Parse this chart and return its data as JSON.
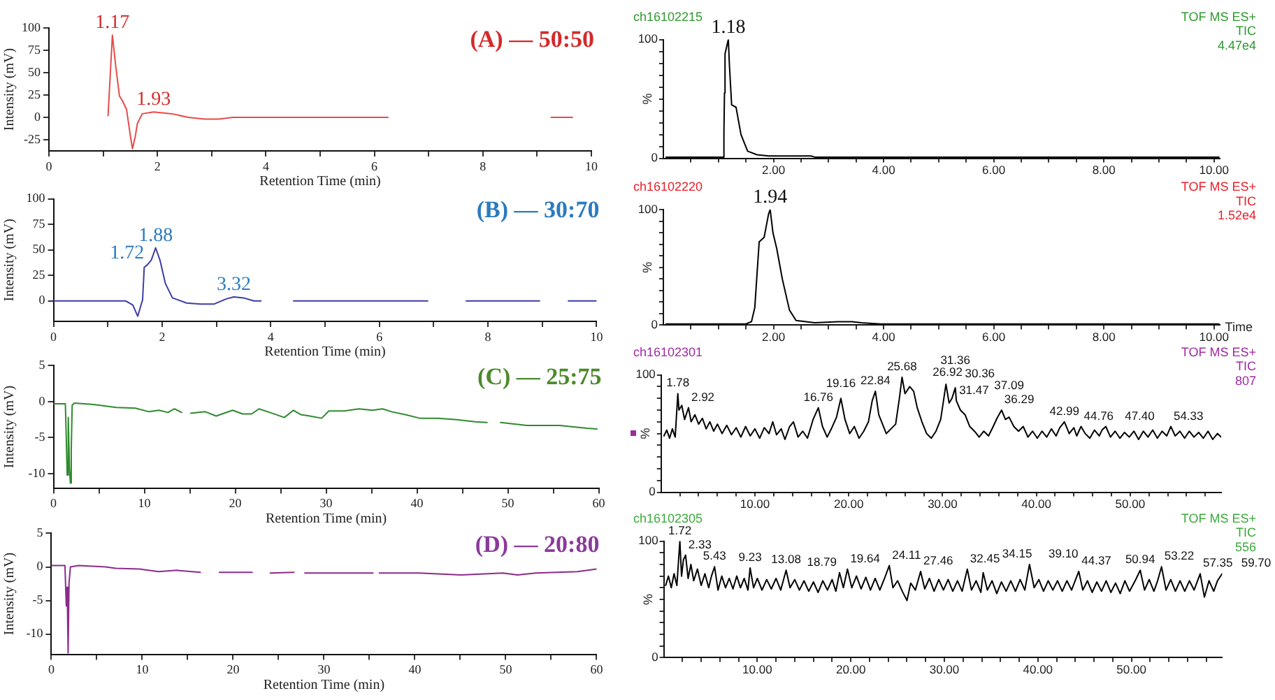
{
  "chart_data": [
    {
      "type": "line",
      "title": "(A) — 50:50",
      "xlabel": "Retention Time (min)",
      "ylabel": "Intensity (mV)",
      "x": [
        1.09,
        1.17,
        1.23,
        1.3,
        1.36,
        1.43,
        1.5,
        1.54,
        1.59,
        1.63,
        1.72,
        1.93,
        2.27,
        2.57,
        2.87,
        3.13,
        3.39,
        6.25,
        7.75,
        9.26,
        9.65
      ],
      "series": [
        {
          "color": "#e84a4a",
          "values": [
            2,
            92,
            58,
            24,
            18,
            9,
            -20,
            -35,
            -22,
            -7,
            4,
            6,
            4,
            0,
            -2,
            -2,
            0,
            0,
            null,
            0,
            0
          ]
        }
      ],
      "xlim": [
        0,
        10
      ],
      "ylim": [
        -37.5,
        100
      ],
      "xticks": [
        0,
        {
          "value": 1,
          "label": null
        },
        2,
        {
          "value": 3,
          "label": null
        },
        4,
        {
          "value": 5,
          "label": null
        },
        6,
        {
          "value": 7,
          "label": null
        },
        8,
        {
          "value": 9,
          "label": null
        },
        10
      ],
      "yticks": [
        -25,
        0,
        25,
        50,
        75,
        100
      ],
      "annotations": [
        {
          "text": "1.17",
          "x": 1.17,
          "y": 92
        },
        {
          "text": "1.93",
          "x": 1.93,
          "y": 6
        }
      ]
    },
    {
      "type": "line",
      "title": "ch16102215",
      "ylabel": "%",
      "x": [
        0.05,
        1.09,
        1.1,
        1.11,
        1.12,
        1.18,
        1.2,
        1.24,
        1.32,
        1.41,
        1.53,
        1.7,
        1.91,
        2.68,
        2.75,
        10.1
      ],
      "series": [
        {
          "color": "#000000",
          "values": [
            1,
            1,
            22,
            55,
            88,
            100,
            78,
            45,
            43,
            20,
            6,
            3,
            2,
            2,
            1,
            1
          ]
        }
      ],
      "xlim": [
        0,
        10.1
      ],
      "ylim": [
        0,
        100
      ],
      "xticks": [
        {
          "value": 0.5,
          "label": null
        },
        {
          "value": 1,
          "label": null
        },
        {
          "value": 1.5,
          "label": null
        },
        {
          "value": 2,
          "label": "2.00"
        },
        {
          "value": 2.5,
          "label": null
        },
        {
          "value": 3,
          "label": null
        },
        {
          "value": 3.5,
          "label": null
        },
        {
          "value": 4,
          "label": "4.00"
        },
        {
          "value": 4.5,
          "label": null
        },
        {
          "value": 5,
          "label": null
        },
        {
          "value": 5.5,
          "label": null
        },
        {
          "value": 6,
          "label": "6.00"
        },
        {
          "value": 6.5,
          "label": null
        },
        {
          "value": 7,
          "label": null
        },
        {
          "value": 7.5,
          "label": null
        },
        {
          "value": 8,
          "label": "8.00"
        },
        {
          "value": 8.5,
          "label": null
        },
        {
          "value": 9,
          "label": null
        },
        {
          "value": 9.5,
          "label": null
        },
        {
          "value": 10,
          "label": "10.00"
        }
      ],
      "yticks": [
        0,
        {
          "value": 10,
          "label": null
        },
        {
          "value": 20,
          "label": null
        },
        {
          "value": 30,
          "label": null
        },
        {
          "value": 40,
          "label": null
        },
        {
          "value": 50,
          "label": null
        },
        {
          "value": 60,
          "label": null
        },
        {
          "value": 70,
          "label": null
        },
        {
          "value": 80,
          "label": null
        },
        {
          "value": 90,
          "label": null
        },
        100
      ],
      "annotations": [
        "TOF MS ES+",
        "TIC",
        "4.47e4",
        {
          "text": "1.18",
          "x": 1.18,
          "y": 100
        }
      ]
    },
    {
      "type": "line",
      "title": "(B) — 30:70",
      "xlabel": "Retention Time (min)",
      "ylabel": "Intensity (mV)",
      "x": [
        0,
        1.33,
        1.46,
        1.55,
        1.6,
        1.64,
        1.67,
        1.72,
        1.8,
        1.88,
        1.96,
        2.06,
        2.19,
        2.45,
        2.7,
        2.96,
        3.18,
        3.32,
        3.5,
        3.69,
        3.82,
        4.1,
        4.42,
        6.89,
        7.25,
        7.6,
        8.95,
        9.2,
        9.48,
        10
      ],
      "series": [
        {
          "color": "#3c3ca8",
          "values": [
            0,
            0,
            -4,
            -15,
            -6,
            1,
            33,
            35,
            40,
            52,
            40,
            17,
            3,
            -2,
            -3,
            -3,
            2,
            4,
            3,
            0,
            0,
            null,
            0,
            0,
            null,
            0,
            0,
            null,
            0,
            0
          ]
        }
      ],
      "xlim": [
        0,
        10
      ],
      "ylim": [
        -20,
        100
      ],
      "xticks": [
        0,
        {
          "value": 1,
          "label": null
        },
        2,
        {
          "value": 3,
          "label": null
        },
        4,
        {
          "value": 5,
          "label": null
        },
        6,
        {
          "value": 7,
          "label": null
        },
        8,
        {
          "value": 9,
          "label": null
        },
        10
      ],
      "yticks": [
        0,
        25,
        50,
        75,
        100
      ],
      "annotations": [
        {
          "text": "1.72",
          "x": 1.72,
          "y": 35
        },
        {
          "text": "1.88",
          "x": 1.88,
          "y": 52
        },
        {
          "text": "3.32",
          "x": 3.32,
          "y": 4
        }
      ]
    },
    {
      "type": "line",
      "title": "ch16102220",
      "xlabel": "Time",
      "ylabel": "%",
      "x": [
        0.05,
        1.5,
        1.6,
        1.66,
        1.74,
        1.83,
        1.91,
        1.94,
        1.99,
        2.06,
        2.16,
        2.29,
        2.41,
        2.75,
        3.17,
        3.43,
        3.6,
        3.94,
        10.1
      ],
      "series": [
        {
          "color": "#000000",
          "values": [
            1,
            1,
            3,
            15,
            72,
            76,
            96,
            100,
            80,
            66,
            40,
            13,
            4,
            2,
            3,
            3,
            2,
            1,
            1
          ]
        }
      ],
      "xlim": [
        0,
        10.1
      ],
      "ylim": [
        0,
        100
      ],
      "xticks": [
        {
          "value": 0.5,
          "label": null
        },
        {
          "value": 1,
          "label": null
        },
        {
          "value": 1.5,
          "label": null
        },
        {
          "value": 2,
          "label": "2.00"
        },
        {
          "value": 2.5,
          "label": null
        },
        {
          "value": 3,
          "label": null
        },
        {
          "value": 3.5,
          "label": null
        },
        {
          "value": 4,
          "label": "4.00"
        },
        {
          "value": 4.5,
          "label": null
        },
        {
          "value": 5,
          "label": null
        },
        {
          "value": 5.5,
          "label": null
        },
        {
          "value": 6,
          "label": "6.00"
        },
        {
          "value": 6.5,
          "label": null
        },
        {
          "value": 7,
          "label": null
        },
        {
          "value": 7.5,
          "label": null
        },
        {
          "value": 8,
          "label": "8.00"
        },
        {
          "value": 8.5,
          "label": null
        },
        {
          "value": 9,
          "label": null
        },
        {
          "value": 9.5,
          "label": null
        },
        {
          "value": 10,
          "label": "10.00"
        }
      ],
      "yticks": [
        0,
        {
          "value": 10,
          "label": null
        },
        {
          "value": 20,
          "label": null
        },
        {
          "value": 30,
          "label": null
        },
        {
          "value": 40,
          "label": null
        },
        {
          "value": 50,
          "label": null
        },
        {
          "value": 60,
          "label": null
        },
        {
          "value": 70,
          "label": null
        },
        {
          "value": 80,
          "label": null
        },
        {
          "value": 90,
          "label": null
        },
        100
      ],
      "annotations": [
        "TOF MS ES+",
        "TIC",
        "1.52e4",
        {
          "text": "1.94",
          "x": 1.94,
          "y": 100
        }
      ]
    },
    {
      "type": "line",
      "title": "(C) — 25:75",
      "xlabel": "Retention Time (min)",
      "ylabel": "Intensity (mV)",
      "x": [
        0,
        1.3,
        1.4,
        1.5,
        1.62,
        1.75,
        1.85,
        1.95,
        2.05,
        2.3,
        4.4,
        6.9,
        9,
        10.5,
        11.6,
        12.6,
        13.3,
        14.1,
        14.6,
        15.1,
        16.7,
        17.9,
        19.7,
        20.8,
        21.8,
        22.6,
        23.8,
        25.4,
        26.4,
        27.2,
        28.2,
        29.5,
        30.3,
        32,
        33.6,
        35.1,
        36.2,
        37.2,
        38.7,
        40.3,
        42.3,
        44.4,
        46.4,
        47.7,
        48.4,
        49.2,
        52.1,
        55.7,
        58.7,
        59.8
      ],
      "series": [
        {
          "color": "#2f8a2f",
          "values": [
            -0.3,
            -0.3,
            -5,
            -10.2,
            -2.2,
            -9,
            -11.3,
            -6.7,
            -0.5,
            -0.2,
            -0.4,
            -0.8,
            -0.9,
            -1.4,
            -1.2,
            -1.5,
            -1,
            -1.5,
            null,
            -1.6,
            -1.4,
            -2,
            -1.2,
            -1.7,
            -1.7,
            -1,
            -1.5,
            -2.2,
            -1.2,
            -1.8,
            -2,
            -2.3,
            -1.3,
            -1.3,
            -1,
            -1.2,
            -1,
            -1.4,
            -1.8,
            -2.3,
            -2.3,
            -2.5,
            -2.8,
            -2.9,
            null,
            -2.9,
            -3.3,
            -3.3,
            -3.7,
            -3.8
          ]
        }
      ],
      "xlim": [
        0,
        60
      ],
      "ylim": [
        -12,
        5
      ],
      "xticks": [
        0,
        {
          "value": 5,
          "label": null
        },
        10,
        {
          "value": 15,
          "label": null
        },
        20,
        {
          "value": 25,
          "label": null
        },
        30,
        {
          "value": 35,
          "label": null
        },
        40,
        {
          "value": 45,
          "label": null
        },
        50,
        {
          "value": 55,
          "label": null
        },
        60
      ],
      "yticks": [
        -10,
        -5,
        0,
        5
      ]
    },
    {
      "type": "line",
      "title": "ch16102301",
      "ylabel": "%",
      "x": [
        0.3,
        0.6,
        0.9,
        1.2,
        1.5,
        1.78,
        1.9,
        2.2,
        2.5,
        2.92,
        3.2,
        3.6,
        4,
        4.4,
        4.8,
        5.2,
        5.6,
        6,
        6.5,
        7,
        7.5,
        8,
        8.5,
        9,
        9.5,
        10,
        10.5,
        11,
        11.5,
        11.9,
        12.3,
        12.8,
        13.2,
        13.7,
        14.1,
        14.6,
        15.1,
        15.6,
        16.2,
        16.76,
        17.2,
        17.7,
        18.2,
        18.7,
        19.16,
        19.6,
        20.1,
        20.6,
        21.1,
        21.6,
        22.1,
        22.5,
        22.84,
        23.2,
        23.6,
        24,
        24.5,
        25,
        25.4,
        25.68,
        26,
        26.5,
        26.92,
        27.3,
        27.8,
        28.3,
        28.8,
        29.3,
        29.8,
        30.1,
        30.36,
        30.7,
        31,
        31.36,
        31.47,
        31.9,
        32.4,
        32.9,
        33.4,
        33.9,
        34.4,
        34.9,
        35.4,
        35.8,
        36.29,
        36.7,
        37.09,
        37.6,
        38.1,
        38.6,
        39.1,
        39.6,
        40.1,
        40.6,
        41.1,
        41.6,
        42.1,
        42.5,
        42.99,
        43.5,
        44,
        44.3,
        44.76,
        45.2,
        45.7,
        46.2,
        46.7,
        47,
        47.4,
        47.9,
        48.4,
        48.9,
        49.4,
        49.9,
        50.4,
        50.9,
        51.4,
        51.9,
        52.4,
        52.9,
        53.4,
        53.9,
        54.33,
        54.8,
        55.3,
        55.8,
        56.3,
        56.8,
        57.3,
        57.8,
        58.3,
        58.8,
        59.3,
        59.7
      ],
      "series": [
        {
          "color": "#000000",
          "values": [
            48,
            53,
            46,
            54,
            47,
            84,
            70,
            74,
            62,
            72,
            60,
            66,
            58,
            63,
            54,
            60,
            52,
            58,
            50,
            57,
            49,
            55,
            47,
            56,
            48,
            54,
            46,
            55,
            50,
            60,
            49,
            54,
            45,
            56,
            60,
            47,
            52,
            46,
            62,
            72,
            56,
            47,
            55,
            64,
            80,
            62,
            50,
            56,
            46,
            52,
            60,
            78,
            86,
            66,
            58,
            50,
            54,
            58,
            80,
            98,
            84,
            90,
            86,
            72,
            60,
            50,
            46,
            52,
            62,
            78,
            92,
            76,
            80,
            89,
            78,
            70,
            66,
            56,
            52,
            47,
            52,
            48,
            56,
            63,
            70,
            62,
            64,
            56,
            52,
            56,
            47,
            52,
            46,
            52,
            47,
            54,
            48,
            55,
            60,
            50,
            55,
            48,
            56,
            50,
            46,
            53,
            48,
            53,
            56,
            47,
            52,
            46,
            51,
            47,
            52,
            45,
            52,
            47,
            53,
            46,
            52,
            48,
            56,
            48,
            52,
            46,
            52,
            47,
            51,
            46,
            52,
            45,
            50,
            47
          ]
        }
      ],
      "xlim": [
        0,
        59.7
      ],
      "ylim": [
        0,
        100
      ],
      "xticks": [
        {
          "value": 2,
          "label": null
        },
        {
          "value": 4,
          "label": null
        },
        {
          "value": 6,
          "label": null
        },
        {
          "value": 8,
          "label": null
        },
        {
          "value": 10,
          "label": "10.00"
        },
        {
          "value": 12,
          "label": null
        },
        {
          "value": 14,
          "label": null
        },
        {
          "value": 16,
          "label": null
        },
        {
          "value": 18,
          "label": null
        },
        {
          "value": 20,
          "label": "20.00"
        },
        {
          "value": 22,
          "label": null
        },
        {
          "value": 24,
          "label": null
        },
        {
          "value": 26,
          "label": null
        },
        {
          "value": 28,
          "label": null
        },
        {
          "value": 30,
          "label": "30.00"
        },
        {
          "value": 32,
          "label": null
        },
        {
          "value": 34,
          "label": null
        },
        {
          "value": 36,
          "label": null
        },
        {
          "value": 38,
          "label": null
        },
        {
          "value": 40,
          "label": "40.00"
        },
        {
          "value": 42,
          "label": null
        },
        {
          "value": 44,
          "label": null
        },
        {
          "value": 46,
          "label": null
        },
        {
          "value": 48,
          "label": null
        },
        {
          "value": 50,
          "label": "50.00"
        },
        {
          "value": 52,
          "label": null
        },
        {
          "value": 54,
          "label": null
        },
        {
          "value": 56,
          "label": null
        },
        {
          "value": 58,
          "label": null
        }
      ],
      "yticks": [
        0,
        {
          "value": 10,
          "label": null
        },
        {
          "value": 20,
          "label": null
        },
        {
          "value": 30,
          "label": null
        },
        {
          "value": 40,
          "label": null
        },
        {
          "value": 50,
          "label": null
        },
        {
          "value": 60,
          "label": null
        },
        {
          "value": 70,
          "label": null
        },
        {
          "value": 80,
          "label": null
        },
        {
          "value": 90,
          "label": null
        },
        100
      ],
      "annotations": [
        "TOF MS ES+",
        "TIC",
        "807",
        {
          "text": "1.78",
          "x": 1.78,
          "y": 84
        },
        {
          "text": "2.92",
          "x": 2.92,
          "y": 72
        },
        {
          "text": "16.76",
          "x": 16.76,
          "y": 72
        },
        {
          "text": "19.16",
          "x": 19.16,
          "y": 80
        },
        {
          "text": "22.84",
          "x": 22.84,
          "y": 86
        },
        {
          "text": "25.68",
          "x": 25.68,
          "y": 98
        },
        {
          "text": "26.92",
          "x": 26.92,
          "y": 86
        },
        {
          "text": "30.36",
          "x": 30.36,
          "y": 92
        },
        {
          "text": "31.36",
          "x": 31.36,
          "y": 89
        },
        {
          "text": "31.47",
          "x": 31.47,
          "y": 78
        },
        {
          "text": "36.29",
          "x": 36.29,
          "y": 70
        },
        {
          "text": "37.09",
          "x": 37.09,
          "y": 64
        },
        {
          "text": "42.99",
          "x": 42.99,
          "y": 60
        },
        {
          "text": "44.76",
          "x": 44.76,
          "y": 56
        },
        {
          "text": "47.40",
          "x": 47.4,
          "y": 56
        },
        {
          "text": "54.33",
          "x": 54.33,
          "y": 56
        }
      ]
    },
    {
      "type": "line",
      "title": "(D) — 20:80",
      "xlabel": "Retention Time (min)",
      "ylabel": "Intensity (mV)",
      "x": [
        0,
        1.5,
        1.65,
        1.75,
        1.85,
        1.95,
        2.1,
        3,
        6,
        7.1,
        9.7,
        11.8,
        13.8,
        16.4,
        17.3,
        18.5,
        22.1,
        23,
        24.1,
        26.7,
        27.3,
        27.9,
        35.4,
        35.8,
        36.1,
        40.5,
        45.1,
        49.7,
        51.3,
        53.3,
        57.9,
        60
      ],
      "series": [
        {
          "color": "#8b2b8b",
          "values": [
            0.2,
            0.2,
            -5.8,
            -3,
            -12.8,
            -2.4,
            0,
            0.2,
            0,
            -0.2,
            -0.3,
            -0.7,
            -0.5,
            -0.8,
            null,
            -0.8,
            -0.8,
            null,
            -0.9,
            -0.8,
            null,
            -0.9,
            -0.9,
            null,
            -0.9,
            -0.9,
            -1.2,
            -0.9,
            -1.2,
            -0.9,
            -0.7,
            -0.3
          ]
        }
      ],
      "xlim": [
        0,
        60
      ],
      "ylim": [
        -13,
        5
      ],
      "xticks": [
        0,
        {
          "value": 5,
          "label": null
        },
        10,
        {
          "value": 15,
          "label": null
        },
        20,
        {
          "value": 25,
          "label": null
        },
        30,
        {
          "value": 35,
          "label": null
        },
        40,
        {
          "value": 45,
          "label": null
        },
        50,
        {
          "value": 55,
          "label": null
        },
        60
      ],
      "yticks": [
        -10,
        -5,
        0,
        5
      ]
    },
    {
      "type": "line",
      "title": "ch16102305",
      "ylabel": "%",
      "x": [
        0.2,
        0.5,
        0.8,
        1.1,
        1.4,
        1.72,
        1.9,
        2.1,
        2.33,
        2.6,
        2.9,
        3.2,
        3.6,
        4,
        4.4,
        4.8,
        5.1,
        5.43,
        5.8,
        6.2,
        6.6,
        7,
        7.4,
        7.8,
        8.2,
        8.6,
        9,
        9.23,
        9.6,
        10,
        10.5,
        11,
        11.5,
        12,
        12.5,
        13.08,
        13.5,
        14,
        14.5,
        15,
        15.5,
        16,
        16.5,
        17,
        17.5,
        18,
        18.4,
        18.79,
        19.2,
        19.64,
        20.1,
        20.6,
        21.1,
        21.6,
        22.1,
        22.6,
        23.1,
        23.6,
        24.11,
        24.5,
        25,
        25.5,
        26,
        26.4,
        26.9,
        27.46,
        27.9,
        28.4,
        28.9,
        29.4,
        29.9,
        30.4,
        30.9,
        31.4,
        31.9,
        32.45,
        32.9,
        33.4,
        33.9,
        34.15,
        34.6,
        35.1,
        35.6,
        36.1,
        36.6,
        37.1,
        37.6,
        38.1,
        38.6,
        39.1,
        39.6,
        40.1,
        40.6,
        41.1,
        41.6,
        42.1,
        42.6,
        43.1,
        43.6,
        44.37,
        44.8,
        45.3,
        45.8,
        46.3,
        46.8,
        47.3,
        47.8,
        48.3,
        48.8,
        49.3,
        49.8,
        50.4,
        50.94,
        51.4,
        51.9,
        52.4,
        52.8,
        53.22,
        53.7,
        54.2,
        54.7,
        55.2,
        55.7,
        56.2,
        56.7,
        57.35,
        57.8,
        58.3,
        58.8,
        59.2,
        59.7
      ],
      "series": [
        {
          "color": "#000000",
          "values": [
            62,
            70,
            60,
            72,
            62,
            100,
            70,
            84,
            88,
            68,
            80,
            66,
            76,
            62,
            72,
            60,
            70,
            78,
            58,
            70,
            60,
            68,
            59,
            70,
            60,
            68,
            58,
            77,
            60,
            68,
            58,
            67,
            59,
            68,
            58,
            75,
            60,
            67,
            58,
            66,
            57,
            65,
            56,
            66,
            58,
            67,
            57,
            73,
            60,
            76,
            60,
            70,
            59,
            69,
            58,
            68,
            58,
            68,
            79,
            60,
            66,
            57,
            49,
            64,
            58,
            74,
            59,
            68,
            57,
            67,
            58,
            67,
            57,
            66,
            57,
            76,
            58,
            66,
            56,
            73,
            58,
            66,
            55,
            65,
            57,
            66,
            57,
            67,
            58,
            80,
            60,
            67,
            57,
            66,
            58,
            66,
            57,
            66,
            58,
            74,
            58,
            66,
            56,
            65,
            57,
            66,
            56,
            64,
            55,
            66,
            57,
            66,
            75,
            58,
            67,
            57,
            66,
            78,
            58,
            67,
            57,
            66,
            57,
            66,
            58,
            72,
            52,
            66,
            57,
            66,
            72
          ]
        }
      ],
      "xlim": [
        0,
        59.7
      ],
      "ylim": [
        0,
        100
      ],
      "xticks": [
        {
          "value": 2,
          "label": null
        },
        {
          "value": 4,
          "label": null
        },
        {
          "value": 6,
          "label": null
        },
        {
          "value": 8,
          "label": null
        },
        {
          "value": 10,
          "label": "10.00"
        },
        {
          "value": 12,
          "label": null
        },
        {
          "value": 14,
          "label": null
        },
        {
          "value": 16,
          "label": null
        },
        {
          "value": 18,
          "label": null
        },
        {
          "value": 20,
          "label": "20.00"
        },
        {
          "value": 22,
          "label": null
        },
        {
          "value": 24,
          "label": null
        },
        {
          "value": 26,
          "label": null
        },
        {
          "value": 28,
          "label": null
        },
        {
          "value": 30,
          "label": "30.00"
        },
        {
          "value": 32,
          "label": null
        },
        {
          "value": 34,
          "label": null
        },
        {
          "value": 36,
          "label": null
        },
        {
          "value": 38,
          "label": null
        },
        {
          "value": 40,
          "label": "40.00"
        },
        {
          "value": 42,
          "label": null
        },
        {
          "value": 44,
          "label": null
        },
        {
          "value": 46,
          "label": null
        },
        {
          "value": 48,
          "label": null
        },
        {
          "value": 50,
          "label": "50.00"
        },
        {
          "value": 52,
          "label": null
        },
        {
          "value": 54,
          "label": null
        },
        {
          "value": 56,
          "label": null
        },
        {
          "value": 58,
          "label": null
        }
      ],
      "yticks": [
        0,
        {
          "value": 10,
          "label": null
        },
        {
          "value": 20,
          "label": null
        },
        {
          "value": 30,
          "label": null
        },
        {
          "value": 40,
          "label": null
        },
        {
          "value": 50,
          "label": null
        },
        {
          "value": 60,
          "label": null
        },
        {
          "value": 70,
          "label": null
        },
        {
          "value": 80,
          "label": null
        },
        {
          "value": 90,
          "label": null
        },
        100
      ],
      "annotations": [
        "TOF MS ES+",
        "TIC",
        "556",
        {
          "text": "1.72",
          "x": 1.72,
          "y": 100
        },
        {
          "text": "2.33",
          "x": 2.33,
          "y": 88
        },
        {
          "text": "5.43",
          "x": 5.43,
          "y": 78
        },
        {
          "text": "9.23",
          "x": 9.23,
          "y": 77
        },
        {
          "text": "13.08",
          "x": 13.08,
          "y": 75
        },
        {
          "text": "18.79",
          "x": 18.79,
          "y": 73
        },
        {
          "text": "19.64",
          "x": 19.64,
          "y": 76
        },
        {
          "text": "24.11",
          "x": 24.11,
          "y": 79
        },
        {
          "text": "27.46",
          "x": 27.46,
          "y": 74
        },
        {
          "text": "32.45",
          "x": 32.45,
          "y": 76
        },
        {
          "text": "34.15",
          "x": 34.15,
          "y": 73
        },
        {
          "text": "39.10",
          "x": 39.1,
          "y": 80
        },
        {
          "text": "44.37",
          "x": 44.37,
          "y": 74
        },
        {
          "text": "50.94",
          "x": 50.94,
          "y": 75
        },
        {
          "text": "53.22",
          "x": 53.22,
          "y": 78
        },
        {
          "text": "57.35",
          "x": 57.35,
          "y": 72
        },
        {
          "text": "59.70",
          "x": 59.7,
          "y": 72
        }
      ]
    }
  ]
}
